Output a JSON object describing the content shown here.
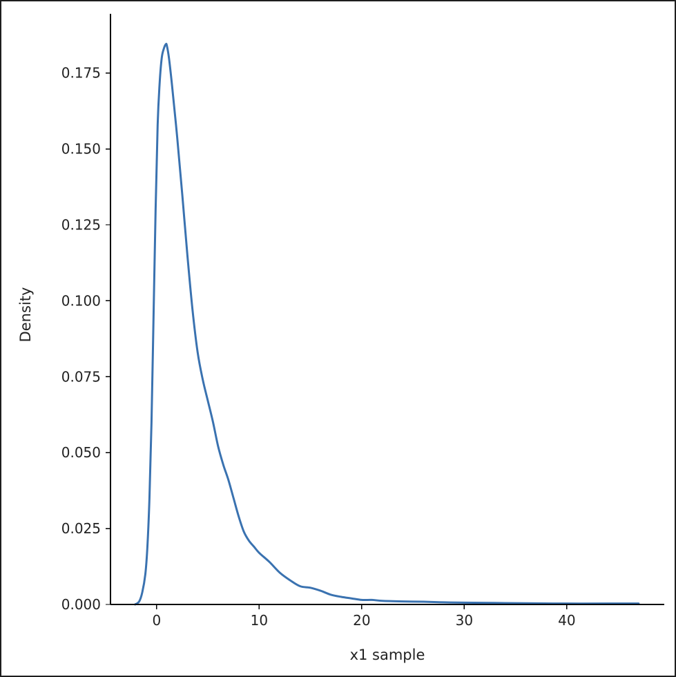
{
  "chart_data": {
    "type": "line",
    "title": "",
    "xlabel": "x1 sample",
    "ylabel": "Density",
    "xlim": [
      -4.5,
      49.5
    ],
    "ylim": [
      0,
      0.1945
    ],
    "x_ticks": [
      0,
      10,
      20,
      30,
      40
    ],
    "x_tick_labels": [
      "0",
      "10",
      "20",
      "30",
      "40"
    ],
    "y_ticks": [
      0,
      0.025,
      0.05,
      0.075,
      0.1,
      0.125,
      0.15,
      0.175
    ],
    "y_tick_labels": [
      "0.000",
      "0.025",
      "0.050",
      "0.075",
      "0.100",
      "0.125",
      "0.150",
      "0.175"
    ],
    "grid": false,
    "legend": "none",
    "series": [
      {
        "color": "#3a72b0",
        "x": [
          -2.1,
          -1.7,
          -1.4,
          -1.1,
          -0.9,
          -0.7,
          -0.5,
          -0.3,
          -0.1,
          0.1,
          0.3,
          0.5,
          0.7,
          0.9,
          1.0,
          1.2,
          1.5,
          2.0,
          2.5,
          3.0,
          3.5,
          4.0,
          4.5,
          5.0,
          5.5,
          6.0,
          6.5,
          7.0,
          7.5,
          8.0,
          8.5,
          9.0,
          9.5,
          10.0,
          11.0,
          12.0,
          13.0,
          14.0,
          15.0,
          16.0,
          17.0,
          18.0,
          19.0,
          20.0,
          21.0,
          22.0,
          24.0,
          26.0,
          28.0,
          30.0,
          33.0,
          36.0,
          40.0,
          44.0,
          47.0
        ],
        "y": [
          0.0,
          0.001,
          0.004,
          0.01,
          0.019,
          0.035,
          0.06,
          0.095,
          0.13,
          0.158,
          0.172,
          0.18,
          0.183,
          0.1845,
          0.184,
          0.18,
          0.171,
          0.154,
          0.135,
          0.115,
          0.097,
          0.083,
          0.074,
          0.067,
          0.06,
          0.052,
          0.046,
          0.041,
          0.035,
          0.029,
          0.024,
          0.021,
          0.019,
          0.017,
          0.014,
          0.0105,
          0.008,
          0.006,
          0.0055,
          0.0045,
          0.0032,
          0.0025,
          0.002,
          0.0015,
          0.0015,
          0.0012,
          0.001,
          0.0009,
          0.0007,
          0.0006,
          0.0005,
          0.0004,
          0.0003,
          0.0003,
          0.0003
        ]
      }
    ]
  }
}
